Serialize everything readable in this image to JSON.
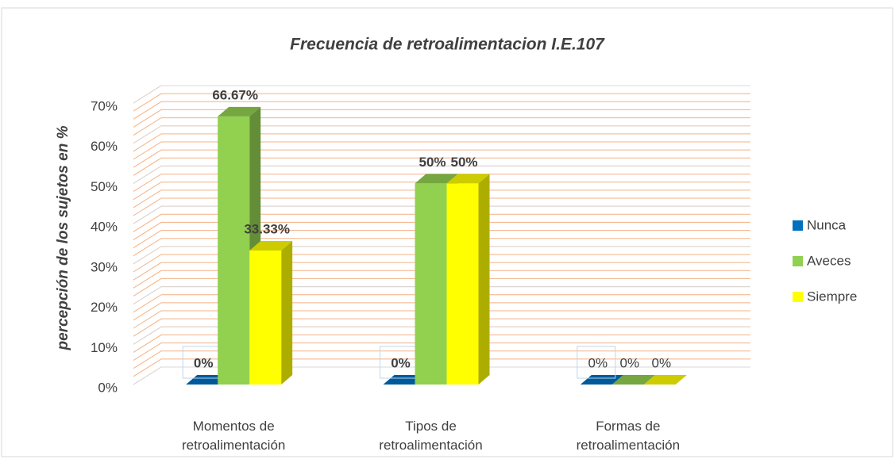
{
  "chart_data": {
    "type": "bar3d",
    "title": "Frecuencia de retroalimentacion I.E.107",
    "y_label": "percepción de los sujetos en %",
    "categories": [
      "Momentos de retroalimentación",
      "Tipos de retroalimentación",
      "Formas de retroalimentación"
    ],
    "series": [
      {
        "name": "Nunca",
        "color": "#0070c0",
        "values": [
          0,
          0,
          0
        ],
        "value_labels": [
          "0%",
          "0%",
          "0%"
        ]
      },
      {
        "name": "Aveces",
        "color": "#92d050",
        "values": [
          66.67,
          50,
          0
        ],
        "value_labels": [
          "66.67%",
          "50%",
          "0%"
        ]
      },
      {
        "name": "Siempre",
        "color": "#ffff00",
        "values": [
          33.33,
          50,
          0
        ],
        "value_labels": [
          "33.33%",
          "50%",
          "0%"
        ]
      }
    ],
    "ylim": [
      0,
      70
    ],
    "yticks": [
      {
        "value": 0,
        "label": "0%"
      },
      {
        "value": 10,
        "label": "10%"
      },
      {
        "value": 20,
        "label": "20%"
      },
      {
        "value": 30,
        "label": "30%"
      },
      {
        "value": 40,
        "label": "40%"
      },
      {
        "value": 50,
        "label": "50%"
      },
      {
        "value": 60,
        "label": "60%"
      },
      {
        "value": 70,
        "label": "70%"
      }
    ],
    "grid": true,
    "legend": "right"
  }
}
